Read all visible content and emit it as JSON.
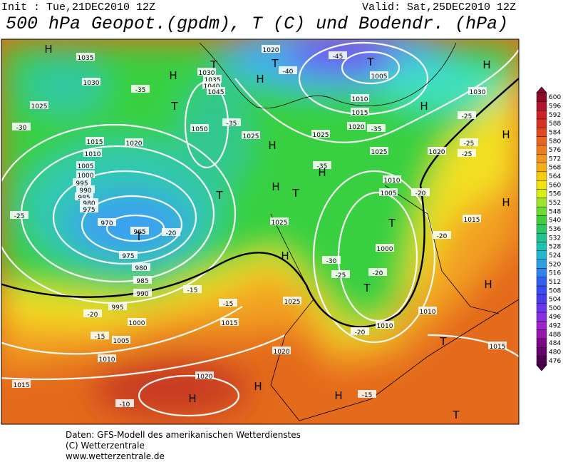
{
  "header": {
    "init": "Init : Tue,21DEC2010 12Z",
    "valid": "Valid: Sat,25DEC2010 12Z",
    "title": "500 hPa Geopot.(gpdm), T (C) und Bodendr. (hPa)"
  },
  "colorbar": {
    "labels": [
      "600",
      "596",
      "592",
      "588",
      "584",
      "580",
      "576",
      "572",
      "568",
      "564",
      "560",
      "556",
      "552",
      "548",
      "540",
      "536",
      "532",
      "528",
      "524",
      "520",
      "516",
      "512",
      "508",
      "504",
      "500",
      "496",
      "492",
      "488",
      "484",
      "480",
      "476"
    ]
  },
  "map_labels": [
    "H",
    "1035",
    "1030",
    "-35",
    "1025",
    "-30",
    "1015",
    "1020",
    "1010",
    "1005",
    "1000",
    "995",
    "990",
    "985",
    "980",
    "975",
    "970",
    "965",
    "T",
    "975",
    "980",
    "985",
    "990",
    "995",
    "1000",
    "1005",
    "1010",
    "1015",
    "1020",
    "H",
    "-10",
    "T",
    "1030",
    "1035",
    "1040",
    "1045",
    "T",
    "1050",
    "-35",
    "H",
    "1020",
    "T",
    "-40",
    "-45",
    "T",
    "1005",
    "H",
    "H",
    "1030",
    "1010",
    "1015",
    "1020",
    "-35",
    "H",
    "1025",
    "1025",
    "H",
    "1025",
    "1020",
    "-35",
    "H",
    "1010",
    "1005",
    "-20",
    "H",
    "T",
    "T",
    "-25",
    "-20",
    "1025",
    "T",
    "1000",
    "-30",
    "-25",
    "-20",
    "T",
    "H",
    "-15",
    "-15",
    "1025",
    "1015",
    "-20",
    "1010",
    "1010",
    "-20",
    "1020",
    "-15",
    "H",
    "H",
    "-15",
    "T",
    "1015",
    "H",
    "H",
    "H",
    "-25",
    "-25",
    "-20",
    "-25",
    "T",
    "1015"
  ],
  "footer": [
    "Daten: GFS-Modell des amerikanischen Wetterdienstes",
    "(C) Wetterzentrale",
    "www.wetterzentrale.de"
  ]
}
